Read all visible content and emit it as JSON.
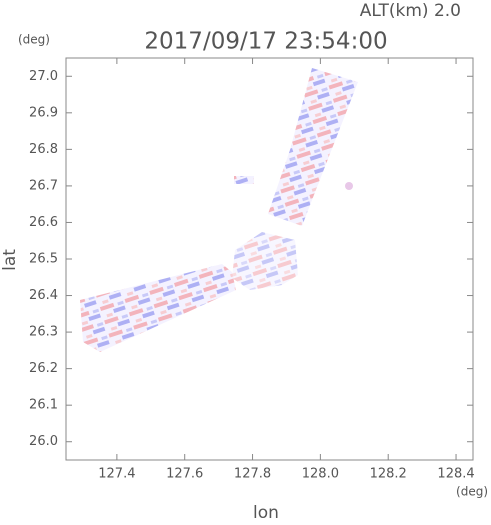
{
  "chart_data": {
    "type": "image",
    "title": "2017/09/17 23:54:00",
    "subtitle": "ALT(km) 2.0",
    "y_label": "lat",
    "y_unit": "(deg)",
    "x_label": "lon",
    "x_unit": "(deg)",
    "xlim": [
      127.25,
      128.45
    ],
    "xticks": [
      127.4,
      127.6,
      127.8,
      {
        "value": 128.0,
        "label": "128.0"
      },
      128.2,
      128.4
    ],
    "ylim": [
      25.95,
      27.05
    ],
    "yticks": [
      {
        "value": 26.0,
        "label": "26.0"
      },
      26.1,
      26.2,
      26.3,
      26.4,
      26.5,
      26.6,
      26.7,
      26.8,
      26.9,
      {
        "value": 27.0,
        "label": "27.0"
      }
    ]
  }
}
